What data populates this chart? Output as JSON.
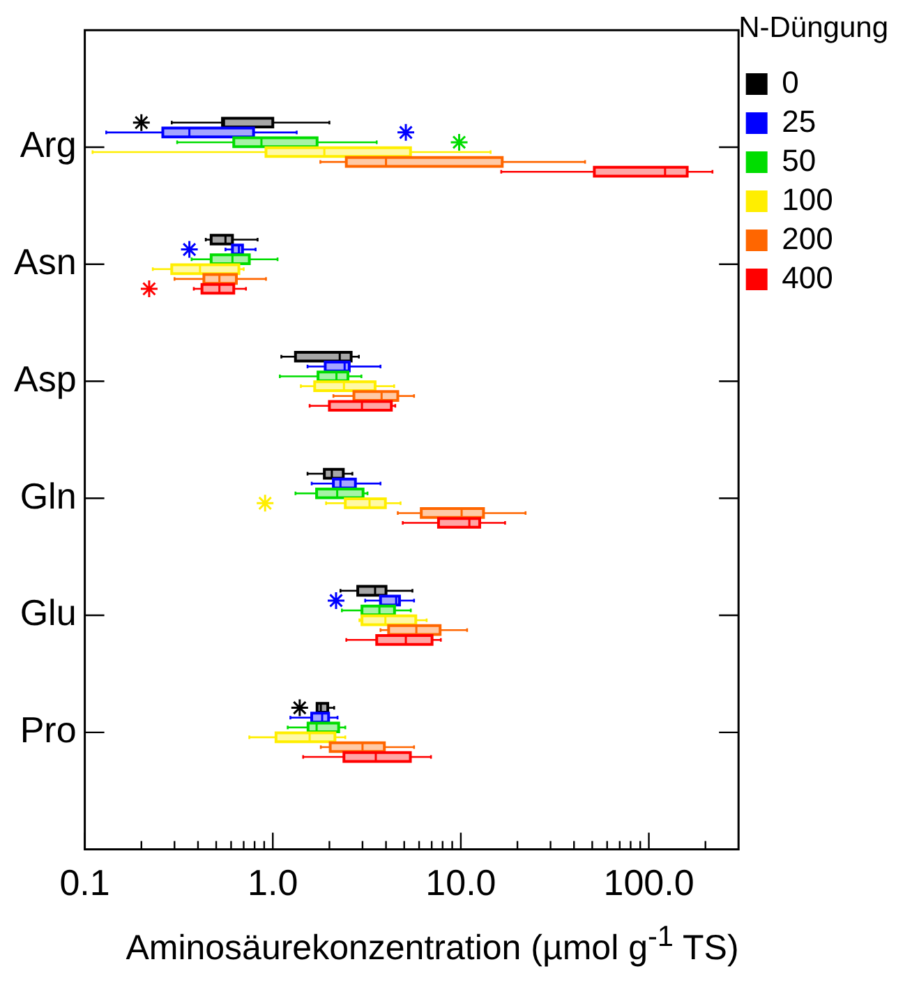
{
  "chart_data": {
    "type": "box",
    "orientation": "horizontal",
    "xlabel": "Aminosäurekonzentration (µmol g$^{-1}$ TS)",
    "legend_title": "N-Düngung",
    "legend": "top right",
    "log": "x",
    "marker": "star",
    "categories": [
      "Arg",
      "Asn",
      "Asp",
      "Gln",
      "Glu",
      "Pro"
    ],
    "xlim": [
      0.1,
      300
    ],
    "xticks": [
      {
        "value": 0.1,
        "label": "0.1"
      },
      {
        "value": 0.2,
        "label": null
      },
      {
        "value": 0.3,
        "label": null
      },
      {
        "value": 0.4,
        "label": null
      },
      {
        "value": 0.5,
        "label": null
      },
      {
        "value": 0.6,
        "label": null
      },
      {
        "value": 0.7,
        "label": null
      },
      {
        "value": 0.8,
        "label": null
      },
      {
        "value": 0.9,
        "label": null
      },
      {
        "value": 1,
        "label": "1.0"
      },
      {
        "value": 2,
        "label": null
      },
      {
        "value": 3,
        "label": null
      },
      {
        "value": 4,
        "label": null
      },
      {
        "value": 5,
        "label": null
      },
      {
        "value": 6,
        "label": null
      },
      {
        "value": 7,
        "label": null
      },
      {
        "value": 8,
        "label": null
      },
      {
        "value": 9,
        "label": null
      },
      {
        "value": 10,
        "label": "10.0"
      },
      {
        "value": 20,
        "label": null
      },
      {
        "value": 30,
        "label": null
      },
      {
        "value": 40,
        "label": null
      },
      {
        "value": 50,
        "label": null
      },
      {
        "value": 60,
        "label": null
      },
      {
        "value": 70,
        "label": null
      },
      {
        "value": 80,
        "label": null
      },
      {
        "value": 90,
        "label": null
      },
      {
        "value": 100,
        "label": "100.0"
      },
      {
        "value": 200,
        "label": null
      }
    ],
    "series": [
      {
        "name": "0",
        "color": "#000000",
        "boxes": [
          {
            "low": 0.29,
            "q1": 0.54,
            "median": 0.55,
            "q3": 1.0,
            "high": 2.0,
            "outliers": [
              0.2
            ]
          },
          {
            "low": 0.44,
            "q1": 0.47,
            "median": 0.56,
            "q3": 0.61,
            "high": 0.83
          },
          {
            "low": 1.11,
            "q1": 1.32,
            "median": 2.27,
            "q3": 2.61,
            "high": 2.87
          },
          {
            "low": 1.53,
            "q1": 1.88,
            "median": 2.06,
            "q3": 2.37,
            "high": 2.65
          },
          {
            "low": 2.29,
            "q1": 2.83,
            "median": 3.5,
            "q3": 4.0,
            "high": 5.53
          },
          {
            "low": 1.72,
            "q1": 1.72,
            "median": 1.8,
            "q3": 1.96,
            "high": 2.12,
            "outliers": [
              1.39
            ]
          }
        ]
      },
      {
        "name": "25",
        "color": "#0000ff",
        "boxes": [
          {
            "low": 0.13,
            "q1": 0.26,
            "median": 0.36,
            "q3": 0.79,
            "high": 1.34,
            "outliers": [
              5.1
            ]
          },
          {
            "low": 0.56,
            "q1": 0.61,
            "median": 0.66,
            "q3": 0.69,
            "high": 0.81,
            "outliers": [
              0.36
            ]
          },
          {
            "low": 1.53,
            "q1": 1.9,
            "median": 2.41,
            "q3": 2.55,
            "high": 3.74
          },
          {
            "low": 1.61,
            "q1": 2.1,
            "median": 2.29,
            "q3": 2.75,
            "high": 3.74
          },
          {
            "low": 3.1,
            "q1": 3.74,
            "median": 4.53,
            "q3": 4.72,
            "high": 5.64,
            "outliers": [
              2.17
            ]
          },
          {
            "low": 1.24,
            "q1": 1.61,
            "median": 1.83,
            "q3": 1.98,
            "high": 2.21
          }
        ]
      },
      {
        "name": "50",
        "color": "#00dd00",
        "boxes": [
          {
            "low": 0.31,
            "q1": 0.62,
            "median": 0.87,
            "q3": 1.72,
            "high": 3.57,
            "outliers": [
              9.8
            ]
          },
          {
            "low": 0.37,
            "q1": 0.47,
            "median": 0.61,
            "q3": 0.75,
            "high": 1.06
          },
          {
            "low": 1.09,
            "q1": 1.74,
            "median": 2.18,
            "q3": 2.51,
            "high": 2.96
          },
          {
            "low": 1.32,
            "q1": 1.71,
            "median": 2.2,
            "q3": 3.02,
            "high": 3.19
          },
          {
            "low": 2.33,
            "q1": 2.98,
            "median": 3.69,
            "q3": 4.44,
            "high": 5.42
          },
          {
            "low": 1.2,
            "q1": 1.54,
            "median": 1.71,
            "q3": 2.24,
            "high": 2.43
          }
        ]
      },
      {
        "name": "100",
        "color": "#ffee00",
        "boxes": [
          {
            "low": 0.11,
            "q1": 0.92,
            "median": 1.88,
            "q3": 5.4,
            "high": 14.4
          },
          {
            "low": 0.23,
            "q1": 0.29,
            "median": 0.41,
            "q3": 0.66,
            "high": 0.7
          },
          {
            "low": 1.41,
            "q1": 1.67,
            "median": 2.39,
            "q3": 3.5,
            "high": 4.42
          },
          {
            "low": 1.92,
            "q1": 2.43,
            "median": 3.27,
            "q3": 3.97,
            "high": 4.78,
            "outliers": [
              0.91
            ]
          },
          {
            "low": 2.89,
            "q1": 2.98,
            "median": 3.97,
            "q3": 5.76,
            "high": 6.58
          },
          {
            "low": 0.75,
            "q1": 1.04,
            "median": 1.57,
            "q3": 2.14,
            "high": 2.43
          }
        ]
      },
      {
        "name": "200",
        "color": "#ff6600",
        "boxes": [
          {
            "low": 1.79,
            "q1": 2.46,
            "median": 4.0,
            "q3": 16.6,
            "high": 45.8
          },
          {
            "low": 0.3,
            "q1": 0.43,
            "median": 0.52,
            "q3": 0.64,
            "high": 0.92
          },
          {
            "low": 2.1,
            "q1": 2.7,
            "median": 3.79,
            "q3": 4.62,
            "high": 5.64
          },
          {
            "low": 4.62,
            "q1": 6.16,
            "median": 10.1,
            "q3": 13.2,
            "high": 22.1
          },
          {
            "low": 3.74,
            "q1": 4.13,
            "median": 5.8,
            "q3": 7.76,
            "high": 10.8
          },
          {
            "low": 1.8,
            "q1": 2.02,
            "median": 3.0,
            "q3": 3.92,
            "high": 5.64
          }
        ]
      },
      {
        "name": "400",
        "color": "#ff0000",
        "boxes": [
          {
            "low": 16.4,
            "q1": 51.3,
            "median": 122,
            "q3": 160,
            "high": 218
          },
          {
            "low": 0.38,
            "q1": 0.42,
            "median": 0.52,
            "q3": 0.62,
            "high": 0.72,
            "outliers": [
              0.22
            ]
          },
          {
            "low": 1.57,
            "q1": 2.0,
            "median": 2.98,
            "q3": 4.27,
            "high": 4.48
          },
          {
            "low": 4.91,
            "q1": 7.61,
            "median": 11.1,
            "q3": 12.6,
            "high": 17.2
          },
          {
            "low": 2.46,
            "q1": 3.57,
            "median": 5.1,
            "q3": 7.03,
            "high": 7.83
          },
          {
            "low": 1.45,
            "q1": 2.39,
            "median": 3.53,
            "q3": 5.39,
            "high": 6.94
          }
        ]
      }
    ]
  }
}
